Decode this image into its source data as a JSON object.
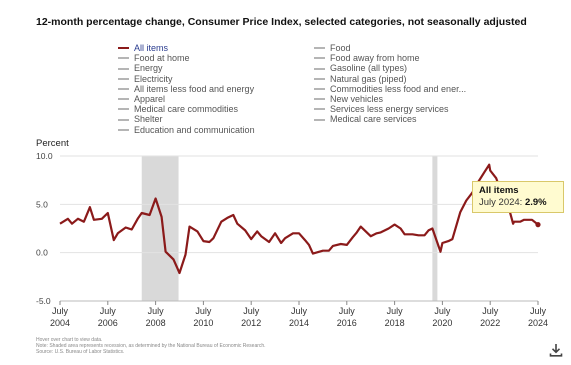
{
  "title": "12-month percentage change, Consumer Price Index, selected categories, not seasonally adjusted",
  "legend": [
    {
      "label": "All items",
      "active": true
    },
    {
      "label": "Food",
      "active": false
    },
    {
      "label": "Food at home",
      "active": false
    },
    {
      "label": "Food away from home",
      "active": false
    },
    {
      "label": "Energy",
      "active": false
    },
    {
      "label": "Gasoline (all types)",
      "active": false
    },
    {
      "label": "Electricity",
      "active": false
    },
    {
      "label": "Natural gas (piped)",
      "active": false
    },
    {
      "label": "All items less food and energy",
      "active": false
    },
    {
      "label": "Commodities less food and ener...",
      "active": false
    },
    {
      "label": "Apparel",
      "active": false
    },
    {
      "label": "New vehicles",
      "active": false
    },
    {
      "label": "Medical care commodities",
      "active": false
    },
    {
      "label": "Services less energy services",
      "active": false
    },
    {
      "label": "Shelter",
      "active": false
    },
    {
      "label": "Medical care services",
      "active": false
    },
    {
      "label": "Education and communication",
      "active": false
    }
  ],
  "tooltip": {
    "title": "All items",
    "value_prefix": "July 2024: ",
    "value": "2.9%"
  },
  "notes": [
    "Hover over chart to view data.",
    "Note: Shaded area represents recession, as determined by the National Bureau of Economic Research.",
    "Source: U.S. Bureau of Labor Statistics."
  ],
  "icons": {
    "download": "download-icon"
  },
  "colors": {
    "series": "#8b1a1a",
    "recession": "#d9d9d9",
    "tooltip_bg": "#fffbd0"
  },
  "chart_data": {
    "type": "line",
    "ylabel": "Percent",
    "y_ticks": [
      "10.0",
      "5.0",
      "0.0",
      "-5.0"
    ],
    "ylim": [
      -5,
      10
    ],
    "x_ticks": [
      {
        "line1": "July",
        "line2": "2004",
        "x": 2004.5
      },
      {
        "line1": "July",
        "line2": "2006",
        "x": 2006.5
      },
      {
        "line1": "July",
        "line2": "2008",
        "x": 2008.5
      },
      {
        "line1": "July",
        "line2": "2010",
        "x": 2010.5
      },
      {
        "line1": "July",
        "line2": "2012",
        "x": 2012.5
      },
      {
        "line1": "July",
        "line2": "2014",
        "x": 2014.5
      },
      {
        "line1": "July",
        "line2": "2016",
        "x": 2016.5
      },
      {
        "line1": "July",
        "line2": "2018",
        "x": 2018.5
      },
      {
        "line1": "July",
        "line2": "2020",
        "x": 2020.5
      },
      {
        "line1": "July",
        "line2": "2022",
        "x": 2022.5
      },
      {
        "line1": "July",
        "line2": "2024",
        "x": 2024.5
      }
    ],
    "xlim": [
      2004.5,
      2024.5
    ],
    "recessions": [
      [
        2007.92,
        2009.46
      ],
      [
        2020.08,
        2020.29
      ]
    ],
    "grid": true,
    "series": [
      {
        "name": "All items",
        "points": [
          [
            2004.5,
            3.0
          ],
          [
            2004.83,
            3.5
          ],
          [
            2005.0,
            3.0
          ],
          [
            2005.25,
            3.5
          ],
          [
            2005.5,
            3.2
          ],
          [
            2005.75,
            4.7
          ],
          [
            2005.92,
            3.4
          ],
          [
            2006.25,
            3.5
          ],
          [
            2006.5,
            4.1
          ],
          [
            2006.75,
            1.3
          ],
          [
            2006.92,
            2.0
          ],
          [
            2007.25,
            2.6
          ],
          [
            2007.5,
            2.4
          ],
          [
            2007.75,
            3.5
          ],
          [
            2007.92,
            4.1
          ],
          [
            2008.25,
            3.9
          ],
          [
            2008.5,
            5.6
          ],
          [
            2008.75,
            3.7
          ],
          [
            2008.92,
            0.1
          ],
          [
            2009.25,
            -0.7
          ],
          [
            2009.5,
            -2.1
          ],
          [
            2009.75,
            -0.2
          ],
          [
            2009.92,
            2.7
          ],
          [
            2010.25,
            2.2
          ],
          [
            2010.5,
            1.2
          ],
          [
            2010.75,
            1.1
          ],
          [
            2010.92,
            1.5
          ],
          [
            2011.25,
            3.2
          ],
          [
            2011.5,
            3.6
          ],
          [
            2011.75,
            3.9
          ],
          [
            2011.92,
            3.0
          ],
          [
            2012.25,
            2.3
          ],
          [
            2012.5,
            1.4
          ],
          [
            2012.75,
            2.2
          ],
          [
            2012.92,
            1.7
          ],
          [
            2013.25,
            1.1
          ],
          [
            2013.5,
            2.0
          ],
          [
            2013.75,
            1.0
          ],
          [
            2013.92,
            1.5
          ],
          [
            2014.25,
            2.0
          ],
          [
            2014.5,
            2.0
          ],
          [
            2014.75,
            1.3
          ],
          [
            2014.92,
            0.8
          ],
          [
            2015.08,
            -0.1
          ],
          [
            2015.5,
            0.2
          ],
          [
            2015.75,
            0.2
          ],
          [
            2015.92,
            0.7
          ],
          [
            2016.25,
            0.9
          ],
          [
            2016.5,
            0.8
          ],
          [
            2016.75,
            1.6
          ],
          [
            2016.92,
            2.1
          ],
          [
            2017.08,
            2.7
          ],
          [
            2017.5,
            1.7
          ],
          [
            2017.75,
            2.0
          ],
          [
            2017.92,
            2.1
          ],
          [
            2018.25,
            2.5
          ],
          [
            2018.5,
            2.9
          ],
          [
            2018.75,
            2.5
          ],
          [
            2018.92,
            1.9
          ],
          [
            2019.25,
            1.9
          ],
          [
            2019.5,
            1.8
          ],
          [
            2019.75,
            1.8
          ],
          [
            2019.92,
            2.3
          ],
          [
            2020.08,
            2.5
          ],
          [
            2020.42,
            0.1
          ],
          [
            2020.5,
            1.0
          ],
          [
            2020.75,
            1.2
          ],
          [
            2020.92,
            1.4
          ],
          [
            2021.25,
            4.2
          ],
          [
            2021.5,
            5.4
          ],
          [
            2021.75,
            6.2
          ],
          [
            2021.92,
            7.0
          ],
          [
            2022.25,
            8.3
          ],
          [
            2022.46,
            9.1
          ],
          [
            2022.5,
            8.5
          ],
          [
            2022.75,
            7.7
          ],
          [
            2022.92,
            6.5
          ],
          [
            2023.25,
            4.9
          ],
          [
            2023.46,
            3.0
          ],
          [
            2023.5,
            3.2
          ],
          [
            2023.75,
            3.2
          ],
          [
            2023.92,
            3.4
          ],
          [
            2024.25,
            3.4
          ],
          [
            2024.5,
            2.9
          ]
        ]
      }
    ],
    "highlight": {
      "x": 2024.5,
      "y": 2.9
    }
  }
}
